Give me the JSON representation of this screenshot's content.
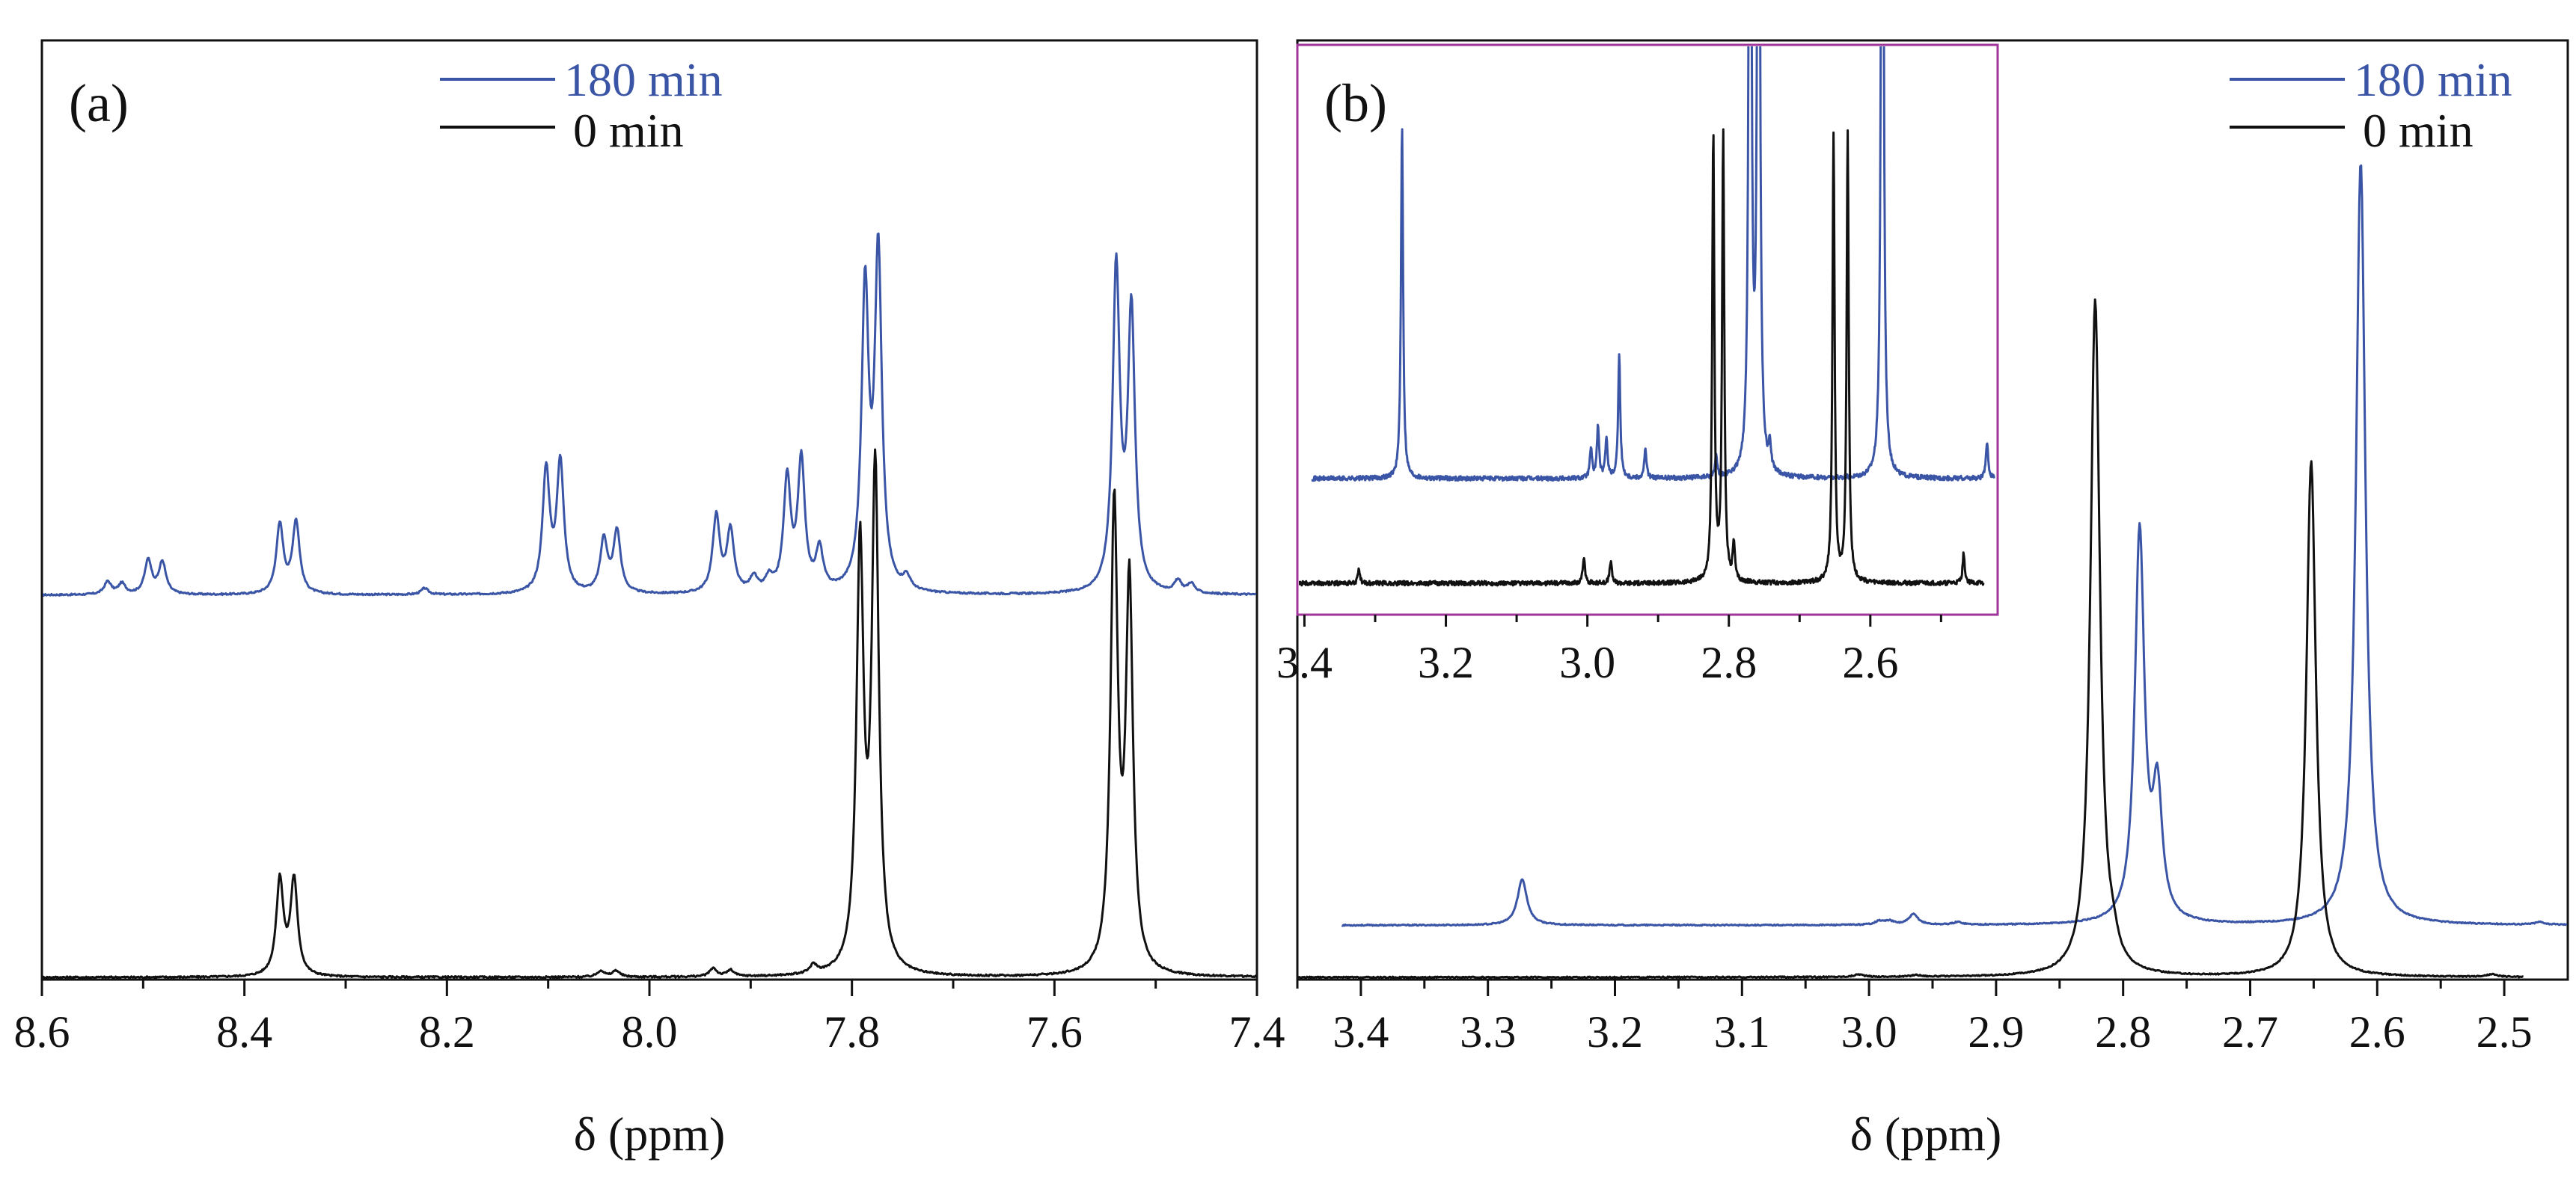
{
  "colors": {
    "blue": "#3b55a6",
    "black": "#111111",
    "inset_frame": "#a0369a",
    "axis": "#111111"
  },
  "chart_data": [
    {
      "panel": "(a)",
      "type": "line",
      "xlabel": "δ (ppm)",
      "xlim": [
        8.6,
        7.4
      ],
      "x_reversed": true,
      "xticks": [
        "8.6",
        "8.4",
        "8.2",
        "8.0",
        "7.8",
        "7.6",
        "7.4"
      ],
      "xtick_values": [
        8.6,
        8.4,
        8.2,
        8.0,
        7.8,
        7.6,
        7.4
      ],
      "legend": {
        "position": "top-center",
        "entries": [
          "180 min",
          "0 min"
        ]
      },
      "series": [
        {
          "name": "180 min",
          "color": "#3b55a6",
          "baseline": 0.36,
          "peaks": [
            [
              8.535,
              0.012
            ],
            [
              8.521,
              0.01
            ],
            [
              8.495,
              0.032
            ],
            [
              8.481,
              0.03
            ],
            [
              8.365,
              0.065
            ],
            [
              8.349,
              0.068
            ],
            [
              8.222,
              0.006
            ],
            [
              8.102,
              0.115
            ],
            [
              8.088,
              0.122
            ],
            [
              8.045,
              0.05
            ],
            [
              8.032,
              0.058
            ],
            [
              7.934,
              0.072
            ],
            [
              7.92,
              0.058
            ],
            [
              7.897,
              0.014
            ],
            [
              7.882,
              0.012
            ],
            [
              7.864,
              0.105
            ],
            [
              7.85,
              0.122
            ],
            [
              7.832,
              0.038
            ],
            [
              7.787,
              0.28
            ],
            [
              7.774,
              0.315
            ],
            [
              7.746,
              0.012
            ],
            [
              7.539,
              0.303
            ],
            [
              7.524,
              0.262
            ],
            [
              7.478,
              0.011
            ],
            [
              7.465,
              0.009
            ]
          ]
        },
        {
          "name": "0 min",
          "color": "#111111",
          "baseline": 0.0,
          "peaks": [
            [
              8.365,
              0.09
            ],
            [
              8.351,
              0.09
            ],
            [
              8.048,
              0.006
            ],
            [
              8.033,
              0.006
            ],
            [
              7.937,
              0.008
            ],
            [
              7.92,
              0.006
            ],
            [
              7.838,
              0.008
            ],
            [
              7.792,
              0.395
            ],
            [
              7.777,
              0.468
            ],
            [
              7.541,
              0.435
            ],
            [
              7.526,
              0.361
            ]
          ]
        }
      ]
    },
    {
      "panel": "(b)",
      "type": "line",
      "xlabel": "δ (ppm)",
      "xlim": [
        3.45,
        2.45
      ],
      "x_reversed": true,
      "xticks": [
        "3.4",
        "3.3",
        "3.2",
        "3.1",
        "3.0",
        "2.9",
        "2.8",
        "2.7",
        "2.6",
        "2.5"
      ],
      "xtick_values": [
        3.4,
        3.3,
        3.2,
        3.1,
        3.0,
        2.9,
        2.8,
        2.7,
        2.6,
        2.5
      ],
      "legend": {
        "position": "top-right",
        "entries": [
          "180 min",
          "0 min"
        ]
      },
      "series": [
        {
          "name": "180 min",
          "color": "#3b55a6",
          "baseline": 0.06,
          "x_range": [
            3.415,
            2.45
          ],
          "peaks": [
            [
              3.273,
              0.053
            ],
            [
              2.992,
              0.004
            ],
            [
              2.984,
              0.004
            ],
            [
              2.965,
              0.012
            ],
            [
              2.93,
              0.003
            ],
            [
              2.787,
              0.45
            ],
            [
              2.773,
              0.143
            ],
            [
              2.613,
              0.88
            ],
            [
              2.472,
              0.003
            ]
          ]
        },
        {
          "name": "0 min",
          "color": "#111111",
          "baseline": 0.0,
          "x_range": [
            3.45,
            2.485
          ],
          "peaks": [
            [
              3.008,
              0.003
            ],
            [
              2.963,
              0.002
            ],
            [
              2.822,
              0.78
            ],
            [
              2.808,
              0.018
            ],
            [
              2.652,
              0.595
            ],
            [
              2.51,
              0.003
            ]
          ]
        }
      ],
      "inset": {
        "xlim": [
          3.41,
          2.42
        ],
        "xticks": [
          "3.4",
          "3.2",
          "3.0",
          "2.8",
          "2.6"
        ],
        "xtick_values": [
          3.4,
          3.2,
          3.0,
          2.8,
          2.6
        ],
        "series": [
          {
            "name": "180 min",
            "color": "#3b55a6",
            "x_range": [
              3.39,
              2.425
            ],
            "peaks": [
              [
                3.262,
                0.95
              ],
              [
                2.995,
                0.08
              ],
              [
                2.985,
                0.14
              ],
              [
                2.973,
                0.11
              ],
              [
                2.955,
                0.33
              ],
              [
                2.918,
                0.08
              ],
              [
                2.818,
                0.06
              ],
              [
                2.77,
                3.0
              ],
              [
                2.758,
                3.0
              ],
              [
                2.742,
                0.07
              ],
              [
                2.583,
                3.0
              ],
              [
                2.435,
                0.1
              ]
            ]
          },
          {
            "name": "0 min",
            "color": "#111111",
            "x_range": [
              3.41,
              2.44
            ],
            "peaks": [
              [
                3.323,
                0.035
              ],
              [
                3.005,
                0.07
              ],
              [
                2.967,
                0.06
              ],
              [
                2.822,
                1.2
              ],
              [
                2.808,
                1.2
              ],
              [
                2.793,
                0.1
              ],
              [
                2.652,
                1.2
              ],
              [
                2.632,
                1.2
              ],
              [
                2.468,
                0.08
              ]
            ]
          }
        ]
      }
    }
  ]
}
